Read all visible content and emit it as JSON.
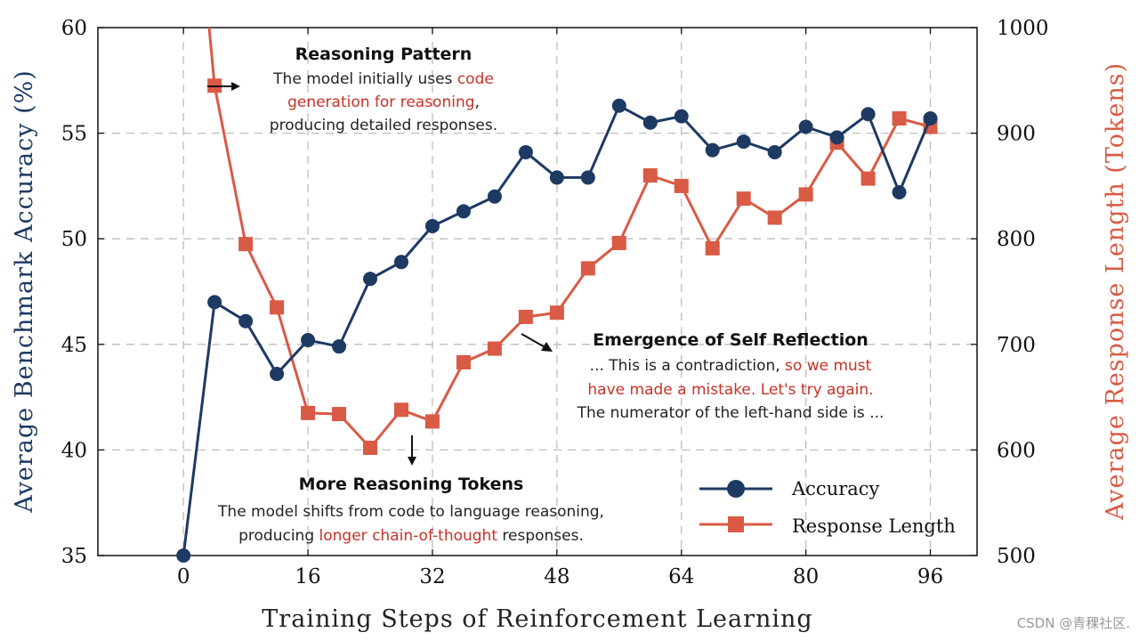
{
  "chart_data": {
    "type": "line",
    "xlabel": "Training Steps of Reinforcement Learning",
    "ylabel_left": "Average Benchmark Accuracy (%)",
    "ylabel_right": "Average Response Length (Tokens)",
    "xlim": [
      -11,
      102
    ],
    "ylim_left": [
      35,
      60
    ],
    "ylim_right": [
      500,
      1000
    ],
    "x_ticks": [
      0,
      16,
      32,
      48,
      64,
      80,
      96
    ],
    "y_ticks_left": [
      35,
      40,
      45,
      50,
      55,
      60
    ],
    "y_ticks_right": [
      500,
      600,
      700,
      800,
      900,
      1000
    ],
    "grid": true,
    "legend_position": "lower-right",
    "series": [
      {
        "name": "Accuracy",
        "axis": "left",
        "color": "#1d3a63",
        "marker": "circle",
        "x": [
          0,
          4,
          8,
          12,
          16,
          20,
          24,
          28,
          32,
          36,
          40,
          44,
          48,
          52,
          56,
          60,
          64,
          68,
          72,
          76,
          80,
          84,
          88,
          92,
          96
        ],
        "values": [
          35.0,
          47.0,
          46.1,
          43.6,
          45.2,
          44.9,
          48.1,
          48.9,
          50.6,
          51.3,
          52.0,
          54.1,
          52.9,
          52.9,
          56.3,
          55.5,
          55.8,
          54.2,
          54.6,
          54.1,
          55.3,
          54.8,
          55.9,
          52.2,
          55.7
        ]
      },
      {
        "name": "Response Length",
        "axis": "right",
        "color": "#d95a45",
        "marker": "square",
        "x": [
          3.3,
          4,
          8,
          12,
          16,
          20,
          24,
          28,
          32,
          36,
          40,
          44,
          48,
          52,
          56,
          60,
          64,
          68,
          72,
          76,
          80,
          84,
          88,
          92,
          96
        ],
        "values": [
          1000,
          945,
          795,
          735,
          635,
          634,
          602,
          638,
          627,
          683,
          696,
          726,
          730,
          772,
          796,
          860,
          850,
          791,
          838,
          820,
          842,
          891,
          857,
          914,
          906
        ],
        "markers_from_index": 1
      }
    ],
    "annotations": [
      {
        "title": "Reasoning Pattern",
        "lines": [
          [
            {
              "text": "The model initially uses ",
              "hl": false
            },
            {
              "text": "code",
              "hl": true
            }
          ],
          [
            {
              "text": "generation for reasoning",
              "hl": true
            },
            {
              "text": ",",
              "hl": false
            }
          ],
          [
            {
              "text": "producing detailed responses.",
              "hl": false
            }
          ]
        ]
      },
      {
        "title": "Emergence of Self Reflection",
        "lines": [
          [
            {
              "text": "... This is a contradiction, ",
              "hl": false
            },
            {
              "text": "so we must",
              "hl": true
            }
          ],
          [
            {
              "text": "have made a mistake. Let's try again.",
              "hl": true
            }
          ],
          [
            {
              "text": "The numerator of the left-hand side is ...",
              "hl": false
            }
          ]
        ]
      },
      {
        "title": "More Reasoning Tokens",
        "lines": [
          [
            {
              "text": "The model shifts from code to language reasoning,",
              "hl": false
            }
          ],
          [
            {
              "text": "producing ",
              "hl": false
            },
            {
              "text": "longer chain-of-thought",
              "hl": true
            },
            {
              "text": " responses.",
              "hl": false
            }
          ]
        ]
      }
    ],
    "legend": [
      "Accuracy",
      "Response Length"
    ]
  },
  "watermark": "CSDN @青稞社区.",
  "colors": {
    "accuracy": "#1d3a63",
    "response": "#d95a45",
    "highlight": "#c83228",
    "grid": "#bdbdbd"
  }
}
